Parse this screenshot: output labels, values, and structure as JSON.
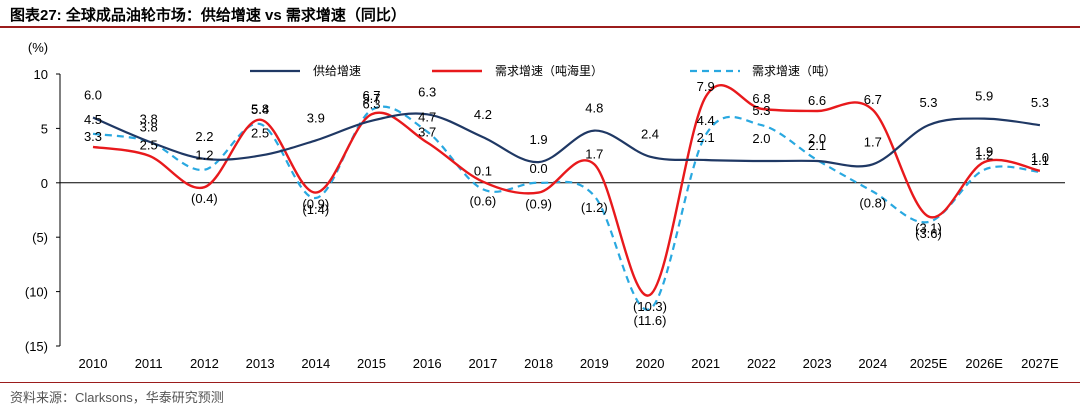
{
  "header": {
    "title": "图表27:  全球成品油轮市场：供给增速 vs 需求增速（同比）"
  },
  "footer": {
    "source": "资料来源：Clarksons，华泰研究预测"
  },
  "colors": {
    "supply": "#1f3864",
    "demand_tonmile": "#e8191c",
    "demand_ton": "#29a8e0",
    "rule": "#9b1c1c"
  },
  "chart_data": {
    "type": "line",
    "title": "全球成品油轮市场：供给增速 vs 需求增速（同比）",
    "ylabel": "(%)",
    "xlabel": "",
    "ylim": [
      -15,
      10
    ],
    "yticks": [
      10,
      5,
      0,
      -5,
      -10,
      -15
    ],
    "ytick_labels": [
      "10",
      "5",
      "0",
      "(5)",
      "(10)",
      "(15)"
    ],
    "grid": false,
    "legend_position": "top",
    "categories": [
      "2010",
      "2011",
      "2012",
      "2013",
      "2014",
      "2015",
      "2016",
      "2017",
      "2018",
      "2019",
      "2020",
      "2021",
      "2022",
      "2023",
      "2024",
      "2025E",
      "2026E",
      "2027E"
    ],
    "series": [
      {
        "name": "供给增速",
        "style": "solid",
        "values": [
          6.0,
          3.8,
          2.2,
          2.5,
          3.9,
          5.7,
          6.3,
          4.2,
          1.9,
          4.8,
          2.4,
          2.1,
          2.0,
          2.0,
          1.7,
          5.3,
          5.9,
          5.3
        ],
        "labels": [
          "6.0",
          "3.8",
          "2.2",
          "2.5",
          "3.9",
          "5.7",
          "6.3",
          "4.2",
          "1.9",
          "4.8",
          "2.4",
          "2.1",
          "2.0",
          "2.0",
          "1.7",
          "5.3",
          "5.9",
          "5.3"
        ]
      },
      {
        "name": "需求增速（吨海里）",
        "style": "solid",
        "values": [
          3.3,
          2.5,
          -0.4,
          5.8,
          -0.9,
          6.3,
          3.7,
          0.1,
          -0.9,
          1.7,
          -10.3,
          7.9,
          6.8,
          6.6,
          6.7,
          -3.1,
          1.9,
          1.1
        ],
        "labels": [
          "3.3",
          "2.5",
          "(0.4)",
          "5.8",
          "(0.9)",
          "6.3",
          "3.7",
          "0.1",
          "(0.9)",
          "1.7",
          "(10.3)",
          "7.9",
          "6.8",
          "6.6",
          "6.7",
          "(3.1)",
          "1.9",
          "1.1"
        ]
      },
      {
        "name": "需求增速（吨）",
        "style": "dashed",
        "values": [
          4.5,
          3.8,
          1.2,
          5.4,
          -1.4,
          6.7,
          4.7,
          -0.6,
          0.0,
          -1.2,
          -11.6,
          4.4,
          5.3,
          2.1,
          -0.8,
          -3.6,
          1.2,
          1.0
        ],
        "labels": [
          "4.5",
          "3.8",
          "1.2",
          "5.4",
          "(1.4)",
          "6.7",
          "4.7",
          "(0.6)",
          "0.0",
          "(1.2)",
          "(11.6)",
          "4.4",
          "5.3",
          "2.1",
          "(0.8)",
          "(3.6)",
          "1.2",
          "1.0"
        ]
      }
    ]
  }
}
